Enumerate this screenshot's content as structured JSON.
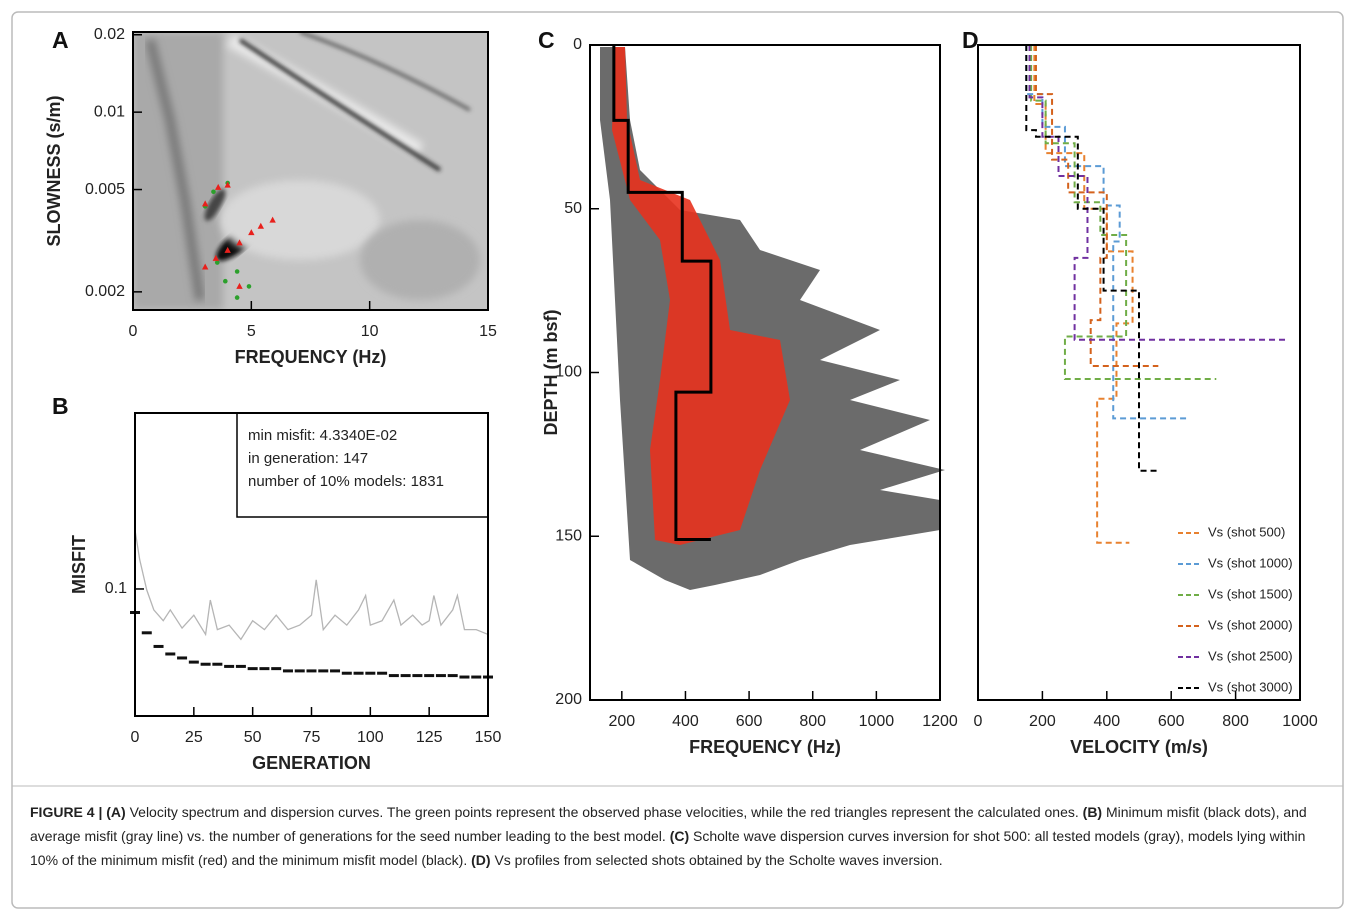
{
  "chart_data": [
    {
      "type": "scatter",
      "label": "A",
      "x_label": "FREQUENCY (Hz)",
      "y_label": "SLOWNESS (s/m)",
      "xlim": [
        0,
        15
      ],
      "xticks": [
        0,
        5,
        10,
        15
      ],
      "ylim": [
        0.0017,
        0.0205
      ],
      "ylog": true,
      "yticks": [
        0.002,
        0.005,
        0.01,
        0.02
      ],
      "series": [
        {
          "color": "#2ca02c",
          "marker": "circle",
          "x": [
            3.4,
            4.0,
            3.05,
            3.56,
            3.9,
            4.4,
            4.9,
            4.4
          ],
          "values": [
            0.0049,
            0.0053,
            0.0043,
            0.0026,
            0.0022,
            0.0024,
            0.0021,
            0.0019
          ]
        },
        {
          "color": "#e8201c",
          "marker": "triangle",
          "x": [
            3.05,
            3.6,
            4.0,
            4.5,
            5.0,
            5.4,
            5.9,
            3.05,
            3.5,
            4.0,
            4.5
          ],
          "values": [
            0.0044,
            0.0051,
            0.0052,
            0.0031,
            0.0034,
            0.0036,
            0.0038,
            0.0025,
            0.0027,
            0.0029,
            0.0021
          ]
        }
      ]
    },
    {
      "type": "line",
      "label": "B",
      "x_label": "GENERATION",
      "y_label": "MISFIT",
      "xlim": [
        0,
        150
      ],
      "xticks": [
        0,
        25,
        50,
        75,
        100,
        125,
        150
      ],
      "ylim": [
        0.03,
        0.53
      ],
      "ylog": true,
      "yticks": [
        0.1
      ],
      "annotation": [
        "min misfit: 4.3340E-02",
        "in generation: 147",
        "number of 10% models: 1831"
      ],
      "series": [
        {
          "color": "#b5b5b5",
          "mode": "line",
          "x": [
            0,
            2,
            5,
            8,
            12,
            15,
            20,
            25,
            30,
            32,
            35,
            40,
            45,
            50,
            55,
            60,
            65,
            70,
            75,
            77,
            80,
            85,
            90,
            95,
            98,
            100,
            105,
            110,
            113,
            118,
            122,
            125,
            127,
            130,
            135,
            137,
            140,
            145,
            150
          ],
          "values": [
            0.175,
            0.132,
            0.099,
            0.082,
            0.074,
            0.082,
            0.069,
            0.078,
            0.065,
            0.09,
            0.068,
            0.071,
            0.062,
            0.074,
            0.068,
            0.078,
            0.068,
            0.071,
            0.078,
            0.109,
            0.068,
            0.078,
            0.071,
            0.082,
            0.094,
            0.071,
            0.074,
            0.09,
            0.071,
            0.078,
            0.071,
            0.074,
            0.094,
            0.071,
            0.082,
            0.094,
            0.068,
            0.068,
            0.065
          ]
        },
        {
          "color": "#111111",
          "mode": "markers",
          "x": [
            0,
            5,
            10,
            15,
            20,
            25,
            30,
            35,
            40,
            45,
            50,
            55,
            60,
            65,
            70,
            75,
            80,
            85,
            90,
            95,
            100,
            105,
            110,
            115,
            120,
            125,
            130,
            135,
            140,
            145,
            150
          ],
          "values": [
            0.08,
            0.066,
            0.058,
            0.054,
            0.052,
            0.05,
            0.049,
            0.049,
            0.048,
            0.048,
            0.047,
            0.047,
            0.047,
            0.046,
            0.046,
            0.046,
            0.046,
            0.046,
            0.045,
            0.045,
            0.045,
            0.045,
            0.044,
            0.044,
            0.044,
            0.044,
            0.044,
            0.044,
            0.0434,
            0.0434,
            0.0434
          ]
        }
      ]
    },
    {
      "type": "profile",
      "label": "C",
      "x_label": "FREQUENCY (Hz)",
      "y_label": "DEPTH (m bsf)",
      "xlim": [
        100,
        1200
      ],
      "xticks": [
        200,
        400,
        600,
        800,
        1000,
        1200
      ],
      "ylim": [
        200,
        0
      ],
      "yticks": [
        0,
        50,
        100,
        150,
        200
      ],
      "series": [
        {
          "color": "#000000",
          "dash": false,
          "x": [
            175,
            175,
            220,
            220,
            390,
            390,
            480,
            480,
            370,
            370,
            480
          ],
          "values": [
            0,
            23,
            23,
            45,
            45,
            66,
            66,
            106,
            106,
            151,
            151
          ]
        }
      ]
    },
    {
      "type": "profile",
      "label": "D",
      "x_label": "VELOCITY (m/s)",
      "xlim": [
        0,
        1000
      ],
      "xticks": [
        0,
        200,
        400,
        600,
        800,
        1000
      ],
      "ylim": [
        200,
        0
      ],
      "legend": "lower right",
      "series": [
        {
          "name": "Vs (shot 500)",
          "color": "#e8812f",
          "dash": true,
          "x": [
            175,
            175,
            210,
            210,
            330,
            330,
            400,
            400,
            480,
            480,
            430,
            430,
            370,
            370,
            470
          ],
          "values": [
            0,
            18,
            18,
            33,
            33,
            50,
            50,
            63,
            63,
            85,
            85,
            108,
            108,
            152,
            152
          ]
        },
        {
          "name": "Vs (shot 1000)",
          "color": "#5b9bd5",
          "dash": true,
          "x": [
            150,
            150,
            200,
            200,
            270,
            270,
            390,
            390,
            440,
            440,
            420,
            420,
            650
          ],
          "values": [
            0,
            15,
            15,
            25,
            25,
            37,
            37,
            49,
            49,
            60,
            60,
            114,
            114
          ]
        },
        {
          "name": "Vs (shot 1500)",
          "color": "#70ad47",
          "dash": true,
          "x": [
            165,
            165,
            210,
            210,
            300,
            300,
            380,
            380,
            460,
            460,
            270,
            270,
            740
          ],
          "values": [
            0,
            17,
            17,
            30,
            30,
            48,
            48,
            58,
            58,
            89,
            89,
            102,
            102
          ]
        },
        {
          "name": "Vs (shot 2000)",
          "color": "#d4621c",
          "dash": true,
          "x": [
            180,
            180,
            230,
            230,
            280,
            280,
            400,
            400,
            380,
            380,
            350,
            350,
            560
          ],
          "values": [
            0,
            15,
            15,
            35,
            35,
            45,
            45,
            65,
            65,
            84,
            84,
            98,
            98
          ]
        },
        {
          "name": "Vs (shot 2500)",
          "color": "#7030a0",
          "dash": true,
          "x": [
            160,
            160,
            200,
            200,
            250,
            250,
            340,
            340,
            300,
            300,
            960
          ],
          "values": [
            0,
            16,
            16,
            28,
            28,
            40,
            40,
            65,
            65,
            90,
            90
          ]
        },
        {
          "name": "Vs (shot 3000)",
          "color": "#000000",
          "dash": true,
          "x": [
            150,
            150,
            180,
            180,
            310,
            310,
            390,
            390,
            500,
            500,
            560
          ],
          "values": [
            0,
            26,
            26,
            28,
            28,
            50,
            50,
            75,
            75,
            130,
            130
          ]
        }
      ]
    }
  ],
  "caption": [
    {
      "text": "FIGURE 4 | (A)",
      "bold": true
    },
    {
      "text": " Velocity spectrum and dispersion curves. The green points represent the observed phase velocities, while the red triangles represent the calculated ones. ",
      "bold": false
    },
    {
      "text": "(B)",
      "bold": true
    },
    {
      "text": " Minimum misfit (black dots), and average misfit (gray line) vs. the number of generations for the seed number leading to the best model. ",
      "bold": false
    },
    {
      "text": "(C)",
      "bold": true
    },
    {
      "text": " Scholte wave dispersion curves inversion for shot 500: all tested models (gray), models lying within 10% of the minimum misfit (red) and the minimum misfit model (black). ",
      "bold": false
    },
    {
      "text": "(D)",
      "bold": true
    },
    {
      "text": " Vs profiles from selected shots obtained by the Scholte waves inversion.",
      "bold": false
    }
  ]
}
